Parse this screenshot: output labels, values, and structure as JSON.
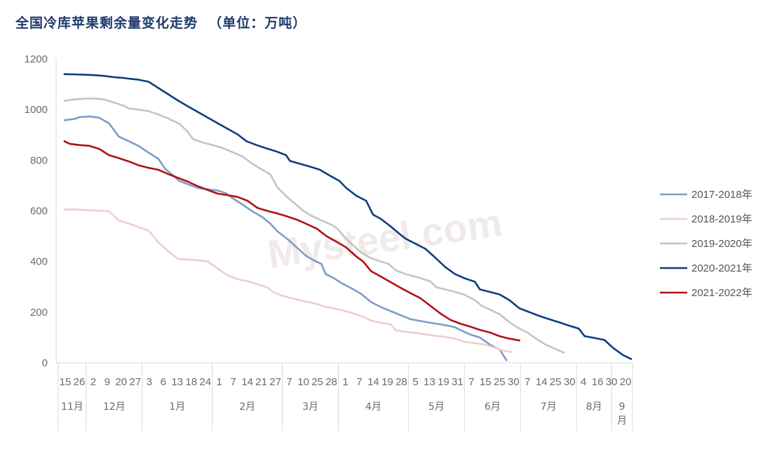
{
  "title": "全国冷库苹果剩余量变化走势  （单位：万吨）",
  "watermark": "Mysteel.com",
  "chart_data": {
    "type": "line",
    "ylim": [
      0,
      1200
    ],
    "yticks": [
      "0",
      "200",
      "400",
      "600",
      "800",
      "1000",
      "1200"
    ],
    "grid": false,
    "legend_position": "right",
    "x_day_labels": [
      "15",
      "26",
      "2",
      "9",
      "20",
      "27",
      "3",
      "6",
      "13",
      "18",
      "24",
      "1",
      "7",
      "14",
      "21",
      "27",
      "7",
      "10",
      "25",
      "28",
      "1",
      "7",
      "14",
      "19",
      "28",
      "5",
      "13",
      "19",
      "31",
      "7",
      "15",
      "25",
      "30",
      "7",
      "14",
      "25",
      "30",
      "4",
      "16",
      "30",
      "20"
    ],
    "x_months": [
      {
        "label": "11月",
        "from": 0,
        "to": 2
      },
      {
        "label": "12月",
        "from": 2,
        "to": 6
      },
      {
        "label": "1月",
        "from": 6,
        "to": 11
      },
      {
        "label": "2月",
        "from": 11,
        "to": 16
      },
      {
        "label": "3月",
        "from": 16,
        "to": 20
      },
      {
        "label": "4月",
        "from": 20,
        "to": 25
      },
      {
        "label": "5月",
        "from": 25,
        "to": 29
      },
      {
        "label": "6月",
        "from": 29,
        "to": 33
      },
      {
        "label": "7月",
        "from": 33,
        "to": 37
      },
      {
        "label": "8月",
        "from": 37,
        "to": 39.5
      },
      {
        "label": "9\n月",
        "from": 39.5,
        "to": 41
      }
    ],
    "x_max": 41,
    "series": [
      {
        "name": "2017-2018年",
        "color": "#7f9cc6",
        "points": [
          [
            0,
            958
          ],
          [
            1,
            963
          ],
          [
            1.5,
            970
          ],
          [
            2.5,
            973
          ],
          [
            3.5,
            968
          ],
          [
            4.5,
            946
          ],
          [
            5.5,
            893
          ],
          [
            6.5,
            875
          ],
          [
            7.5,
            856
          ],
          [
            8.5,
            830
          ],
          [
            9.5,
            805
          ],
          [
            10.2,
            765
          ],
          [
            11,
            740
          ],
          [
            11.6,
            718
          ],
          [
            12.5,
            705
          ],
          [
            13.5,
            690
          ],
          [
            14.5,
            685
          ],
          [
            15.5,
            680
          ],
          [
            16.3,
            670
          ],
          [
            17,
            650
          ],
          [
            18,
            625
          ],
          [
            19,
            598
          ],
          [
            20,
            576
          ],
          [
            20.8,
            550
          ],
          [
            21.5,
            520
          ],
          [
            22.5,
            490
          ],
          [
            23.5,
            455
          ],
          [
            24.5,
            420
          ],
          [
            25.2,
            405
          ],
          [
            26,
            390
          ],
          [
            26.4,
            350
          ],
          [
            27.2,
            335
          ],
          [
            28,
            315
          ],
          [
            29,
            295
          ],
          [
            30,
            272
          ],
          [
            31,
            240
          ],
          [
            32,
            220
          ],
          [
            33,
            204
          ],
          [
            34,
            188
          ],
          [
            35,
            172
          ],
          [
            36,
            165
          ],
          [
            37,
            158
          ],
          [
            38,
            152
          ],
          [
            39,
            145
          ],
          [
            39.5,
            140
          ],
          [
            40,
            130
          ],
          [
            41,
            112
          ],
          [
            42,
            100
          ],
          [
            43,
            72
          ],
          [
            44,
            52
          ],
          [
            44.7,
            10
          ]
        ]
      },
      {
        "name": "2018-2019年",
        "color": "#eccfcf",
        "points": [
          [
            0,
            605
          ],
          [
            1,
            606
          ],
          [
            2,
            603
          ],
          [
            3,
            602
          ],
          [
            4,
            600
          ],
          [
            4.5,
            598
          ],
          [
            5.5,
            562
          ],
          [
            6.5,
            550
          ],
          [
            7.5,
            536
          ],
          [
            8.5,
            522
          ],
          [
            9.5,
            475
          ],
          [
            10.5,
            440
          ],
          [
            11.5,
            410
          ],
          [
            12.5,
            408
          ],
          [
            13.5,
            405
          ],
          [
            14.5,
            400
          ],
          [
            15.5,
            372
          ],
          [
            16.5,
            345
          ],
          [
            17.5,
            330
          ],
          [
            18.5,
            322
          ],
          [
            19.5,
            310
          ],
          [
            20.5,
            298
          ],
          [
            21.2,
            277
          ],
          [
            22,
            265
          ],
          [
            23,
            255
          ],
          [
            24,
            245
          ],
          [
            25,
            237
          ],
          [
            25.7,
            230
          ],
          [
            26.3,
            222
          ],
          [
            27.2,
            215
          ],
          [
            28,
            208
          ],
          [
            29,
            198
          ],
          [
            30,
            185
          ],
          [
            31,
            167
          ],
          [
            32,
            158
          ],
          [
            33,
            152
          ],
          [
            33.5,
            128
          ],
          [
            34.5,
            122
          ],
          [
            35.5,
            118
          ],
          [
            36.5,
            112
          ],
          [
            37.5,
            107
          ],
          [
            38.5,
            102
          ],
          [
            39.5,
            95
          ],
          [
            40.5,
            82
          ],
          [
            41.5,
            78
          ],
          [
            42.5,
            72
          ],
          [
            43.5,
            60
          ],
          [
            44.2,
            50
          ],
          [
            45.2,
            42
          ]
        ]
      },
      {
        "name": "2019-2020年",
        "color": "#c4c4c4",
        "points": [
          [
            0,
            1035
          ],
          [
            1,
            1040
          ],
          [
            2,
            1043
          ],
          [
            3,
            1044
          ],
          [
            4,
            1040
          ],
          [
            5,
            1028
          ],
          [
            6,
            1015
          ],
          [
            6.5,
            1005
          ],
          [
            7.5,
            1000
          ],
          [
            8.5,
            994
          ],
          [
            9.5,
            980
          ],
          [
            10.5,
            965
          ],
          [
            11,
            955
          ],
          [
            11.7,
            942
          ],
          [
            12.5,
            910
          ],
          [
            13,
            883
          ],
          [
            14,
            870
          ],
          [
            15,
            860
          ],
          [
            16,
            848
          ],
          [
            17,
            832
          ],
          [
            18,
            815
          ],
          [
            19,
            786
          ],
          [
            20,
            762
          ],
          [
            20.8,
            745
          ],
          [
            21.5,
            694
          ],
          [
            22.5,
            655
          ],
          [
            23.5,
            622
          ],
          [
            24.2,
            599
          ],
          [
            25,
            580
          ],
          [
            26,
            562
          ],
          [
            27,
            545
          ],
          [
            27.6,
            530
          ],
          [
            28.5,
            488
          ],
          [
            29.3,
            460
          ],
          [
            30,
            435
          ],
          [
            31,
            413
          ],
          [
            32,
            400
          ],
          [
            32.8,
            390
          ],
          [
            33.5,
            365
          ],
          [
            34.5,
            350
          ],
          [
            35.5,
            340
          ],
          [
            36.5,
            328
          ],
          [
            37,
            322
          ],
          [
            37.6,
            298
          ],
          [
            38.5,
            290
          ],
          [
            39.5,
            280
          ],
          [
            40.5,
            268
          ],
          [
            41.5,
            247
          ],
          [
            42.2,
            225
          ],
          [
            43,
            210
          ],
          [
            44,
            192
          ],
          [
            45,
            160
          ],
          [
            46,
            135
          ],
          [
            46.8,
            120
          ],
          [
            47.5,
            100
          ],
          [
            48.5,
            75
          ],
          [
            49.5,
            57
          ],
          [
            50.5,
            40
          ]
        ]
      },
      {
        "name": "2020-2021年",
        "color": "#0e3d80",
        "points": [
          [
            0,
            1140
          ],
          [
            1,
            1139
          ],
          [
            2,
            1138
          ],
          [
            3,
            1136
          ],
          [
            4,
            1133
          ],
          [
            5,
            1128
          ],
          [
            6,
            1125
          ],
          [
            6.5,
            1122
          ],
          [
            7.5,
            1118
          ],
          [
            8.5,
            1110
          ],
          [
            9.5,
            1085
          ],
          [
            10.5,
            1060
          ],
          [
            11.5,
            1035
          ],
          [
            12.5,
            1012
          ],
          [
            13.5,
            990
          ],
          [
            14.5,
            968
          ],
          [
            15.5,
            946
          ],
          [
            16.5,
            924
          ],
          [
            17.5,
            902
          ],
          [
            18.4,
            875
          ],
          [
            19.4,
            860
          ],
          [
            20.4,
            847
          ],
          [
            21.4,
            835
          ],
          [
            22.4,
            820
          ],
          [
            22.8,
            797
          ],
          [
            23.8,
            786
          ],
          [
            24.8,
            775
          ],
          [
            25.8,
            763
          ],
          [
            26.8,
            740
          ],
          [
            27.8,
            718
          ],
          [
            28.5,
            690
          ],
          [
            29.5,
            660
          ],
          [
            30.5,
            640
          ],
          [
            31.2,
            585
          ],
          [
            32,
            568
          ],
          [
            33,
            538
          ],
          [
            34,
            505
          ],
          [
            34.5,
            490
          ],
          [
            35.5,
            470
          ],
          [
            36.5,
            450
          ],
          [
            37.5,
            415
          ],
          [
            38.5,
            378
          ],
          [
            39.5,
            350
          ],
          [
            40.5,
            333
          ],
          [
            41.5,
            320
          ],
          [
            42,
            290
          ],
          [
            43,
            280
          ],
          [
            44,
            270
          ],
          [
            45,
            247
          ],
          [
            46,
            215
          ],
          [
            47,
            200
          ],
          [
            48,
            185
          ],
          [
            49,
            172
          ],
          [
            50,
            160
          ],
          [
            51,
            147
          ],
          [
            52,
            135
          ],
          [
            52.6,
            105
          ],
          [
            53.6,
            98
          ],
          [
            54.6,
            90
          ],
          [
            55.5,
            58
          ],
          [
            56.5,
            30
          ],
          [
            57.3,
            15
          ]
        ]
      },
      {
        "name": "2021-2022年",
        "color": "#b01214",
        "points": [
          [
            0,
            875
          ],
          [
            0.5,
            865
          ],
          [
            1.5,
            860
          ],
          [
            2.5,
            857
          ],
          [
            3.5,
            845
          ],
          [
            4.5,
            820
          ],
          [
            5.5,
            808
          ],
          [
            6.5,
            795
          ],
          [
            7.5,
            780
          ],
          [
            8.5,
            770
          ],
          [
            9.5,
            762
          ],
          [
            10.5,
            745
          ],
          [
            11.5,
            730
          ],
          [
            12.5,
            715
          ],
          [
            13.5,
            697
          ],
          [
            14.5,
            682
          ],
          [
            15.5,
            668
          ],
          [
            16.5,
            662
          ],
          [
            17.5,
            655
          ],
          [
            18.5,
            640
          ],
          [
            19.5,
            612
          ],
          [
            20.5,
            600
          ],
          [
            21.5,
            590
          ],
          [
            22.5,
            578
          ],
          [
            23.5,
            565
          ],
          [
            24.5,
            548
          ],
          [
            25.5,
            530
          ],
          [
            26.5,
            500
          ],
          [
            27.5,
            478
          ],
          [
            28.5,
            455
          ],
          [
            29.5,
            420
          ],
          [
            30.2,
            400
          ],
          [
            31,
            362
          ],
          [
            32,
            340
          ],
          [
            33,
            318
          ],
          [
            34,
            296
          ],
          [
            35,
            275
          ],
          [
            36,
            255
          ],
          [
            37,
            225
          ],
          [
            38,
            195
          ],
          [
            39,
            170
          ],
          [
            40,
            155
          ],
          [
            41,
            143
          ],
          [
            42,
            130
          ],
          [
            43,
            120
          ],
          [
            44,
            105
          ],
          [
            45,
            95
          ],
          [
            46,
            88
          ]
        ]
      }
    ]
  }
}
